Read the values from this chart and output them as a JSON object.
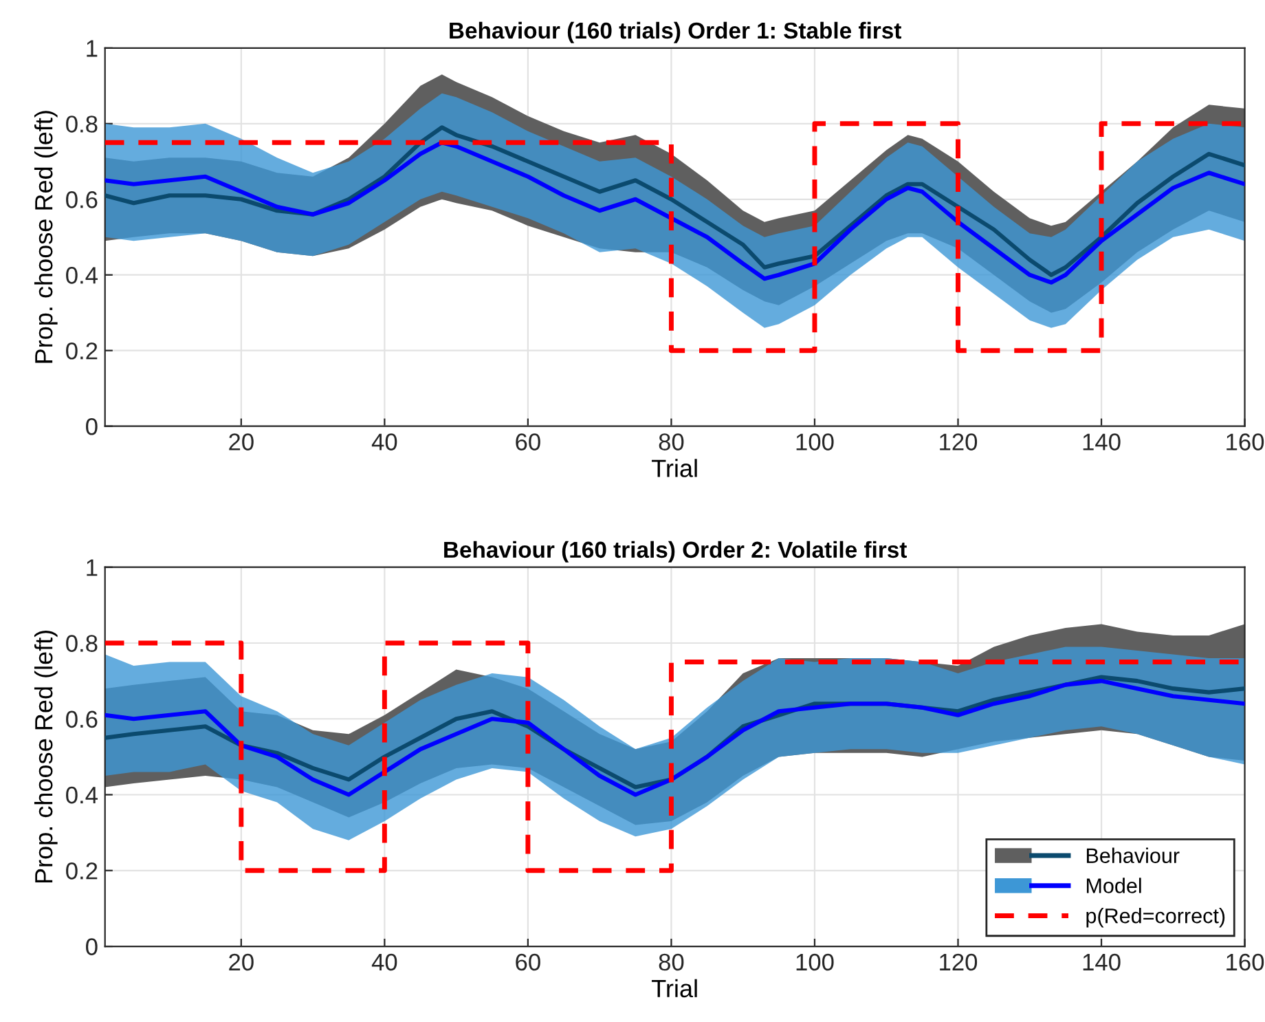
{
  "chart_data": [
    {
      "type": "line",
      "title": "Behaviour (160 trials) Order 1: Stable first",
      "xlabel": "Trial",
      "ylabel": "Prop. choose Red (left)",
      "xlim": [
        1,
        160
      ],
      "xticks": [
        20,
        40,
        60,
        80,
        100,
        120,
        140,
        160
      ],
      "ylim": [
        0,
        1
      ],
      "yticks": [
        0,
        0.2,
        0.4,
        0.6,
        0.8,
        1
      ],
      "grid": true,
      "legend": false,
      "series": [
        {
          "color": "#0b4a6e",
          "x": [
            1,
            5,
            10,
            15,
            20,
            25,
            30,
            35,
            40,
            45,
            48,
            50,
            55,
            60,
            65,
            70,
            75,
            80,
            85,
            90,
            93,
            95,
            100,
            105,
            110,
            113,
            115,
            120,
            125,
            130,
            133,
            135,
            140,
            145,
            150,
            155,
            160
          ],
          "values": [
            0.61,
            0.59,
            0.61,
            0.61,
            0.6,
            0.57,
            0.56,
            0.6,
            0.66,
            0.75,
            0.79,
            0.77,
            0.74,
            0.7,
            0.66,
            0.62,
            0.65,
            0.6,
            0.54,
            0.48,
            0.42,
            0.43,
            0.45,
            0.53,
            0.61,
            0.64,
            0.64,
            0.58,
            0.52,
            0.44,
            0.4,
            0.42,
            0.5,
            0.59,
            0.66,
            0.72,
            0.69
          ],
          "lower": [
            0.49,
            0.5,
            0.51,
            0.51,
            0.49,
            0.46,
            0.45,
            0.47,
            0.52,
            0.58,
            0.6,
            0.59,
            0.57,
            0.53,
            0.5,
            0.47,
            0.46,
            0.46,
            0.42,
            0.36,
            0.33,
            0.32,
            0.37,
            0.43,
            0.49,
            0.51,
            0.51,
            0.47,
            0.4,
            0.33,
            0.3,
            0.31,
            0.38,
            0.46,
            0.52,
            0.57,
            0.54
          ],
          "upper": [
            0.71,
            0.7,
            0.71,
            0.71,
            0.7,
            0.67,
            0.66,
            0.71,
            0.8,
            0.9,
            0.93,
            0.91,
            0.87,
            0.82,
            0.78,
            0.75,
            0.77,
            0.72,
            0.65,
            0.57,
            0.54,
            0.55,
            0.57,
            0.65,
            0.73,
            0.77,
            0.76,
            0.7,
            0.62,
            0.55,
            0.53,
            0.54,
            0.62,
            0.7,
            0.79,
            0.85,
            0.84
          ]
        },
        {
          "color": "#0000ff",
          "x": [
            1,
            5,
            10,
            15,
            20,
            25,
            30,
            35,
            40,
            45,
            48,
            50,
            55,
            60,
            65,
            70,
            75,
            80,
            85,
            90,
            93,
            95,
            100,
            105,
            110,
            113,
            115,
            120,
            125,
            130,
            133,
            135,
            140,
            145,
            150,
            155,
            160
          ],
          "values": [
            0.65,
            0.64,
            0.65,
            0.66,
            0.62,
            0.58,
            0.56,
            0.59,
            0.65,
            0.72,
            0.75,
            0.74,
            0.7,
            0.66,
            0.61,
            0.57,
            0.6,
            0.55,
            0.5,
            0.43,
            0.39,
            0.4,
            0.43,
            0.52,
            0.6,
            0.63,
            0.62,
            0.54,
            0.47,
            0.4,
            0.38,
            0.4,
            0.49,
            0.56,
            0.63,
            0.67,
            0.64
          ],
          "lower": [
            0.5,
            0.49,
            0.5,
            0.51,
            0.49,
            0.46,
            0.45,
            0.48,
            0.54,
            0.6,
            0.62,
            0.61,
            0.58,
            0.55,
            0.51,
            0.46,
            0.47,
            0.43,
            0.37,
            0.3,
            0.26,
            0.27,
            0.32,
            0.4,
            0.47,
            0.5,
            0.5,
            0.42,
            0.35,
            0.28,
            0.26,
            0.27,
            0.36,
            0.44,
            0.5,
            0.52,
            0.49
          ],
          "upper": [
            0.8,
            0.79,
            0.79,
            0.8,
            0.76,
            0.71,
            0.67,
            0.7,
            0.76,
            0.84,
            0.88,
            0.87,
            0.83,
            0.78,
            0.74,
            0.7,
            0.71,
            0.66,
            0.6,
            0.53,
            0.5,
            0.51,
            0.53,
            0.62,
            0.71,
            0.75,
            0.74,
            0.66,
            0.58,
            0.51,
            0.5,
            0.52,
            0.61,
            0.7,
            0.76,
            0.8,
            0.79
          ]
        },
        {
          "type": "step",
          "color": "#ff0000",
          "line_style": "dashed",
          "x": [
            1,
            80,
            100,
            120,
            140,
            160
          ],
          "values": [
            0.75,
            0.2,
            0.8,
            0.2,
            0.8,
            0.8
          ]
        }
      ]
    },
    {
      "type": "line",
      "title": "Behaviour (160 trials) Order 2: Volatile first",
      "xlabel": "Trial",
      "ylabel": "Prop. choose Red (left)",
      "xlim": [
        1,
        160
      ],
      "xticks": [
        20,
        40,
        60,
        80,
        100,
        120,
        140,
        160
      ],
      "ylim": [
        0,
        1
      ],
      "yticks": [
        0,
        0.2,
        0.4,
        0.6,
        0.8,
        1
      ],
      "grid": true,
      "legend": "bottom right",
      "series": [
        {
          "name": "Behaviour",
          "color": "#0b4a6e",
          "x": [
            1,
            5,
            10,
            15,
            20,
            25,
            30,
            35,
            40,
            45,
            50,
            55,
            60,
            65,
            70,
            75,
            80,
            85,
            90,
            95,
            100,
            105,
            110,
            115,
            120,
            125,
            130,
            135,
            140,
            145,
            150,
            155,
            160
          ],
          "values": [
            0.55,
            0.56,
            0.57,
            0.58,
            0.53,
            0.51,
            0.47,
            0.44,
            0.5,
            0.55,
            0.6,
            0.62,
            0.58,
            0.52,
            0.47,
            0.42,
            0.44,
            0.5,
            0.58,
            0.61,
            0.64,
            0.64,
            0.64,
            0.63,
            0.62,
            0.65,
            0.67,
            0.69,
            0.71,
            0.7,
            0.68,
            0.67,
            0.68
          ],
          "lower": [
            0.42,
            0.43,
            0.44,
            0.45,
            0.44,
            0.42,
            0.38,
            0.34,
            0.38,
            0.43,
            0.47,
            0.48,
            0.47,
            0.42,
            0.37,
            0.32,
            0.33,
            0.38,
            0.45,
            0.5,
            0.51,
            0.51,
            0.51,
            0.5,
            0.52,
            0.54,
            0.55,
            0.56,
            0.57,
            0.56,
            0.53,
            0.5,
            0.49
          ],
          "upper": [
            0.68,
            0.69,
            0.7,
            0.71,
            0.62,
            0.61,
            0.57,
            0.56,
            0.61,
            0.67,
            0.73,
            0.71,
            0.68,
            0.62,
            0.56,
            0.52,
            0.54,
            0.62,
            0.72,
            0.76,
            0.76,
            0.76,
            0.76,
            0.75,
            0.74,
            0.79,
            0.82,
            0.84,
            0.85,
            0.83,
            0.82,
            0.82,
            0.85
          ]
        },
        {
          "name": "Model",
          "color": "#0000ff",
          "x": [
            1,
            5,
            10,
            15,
            20,
            25,
            30,
            35,
            40,
            45,
            50,
            55,
            60,
            65,
            70,
            75,
            80,
            85,
            90,
            95,
            100,
            105,
            110,
            115,
            120,
            125,
            130,
            135,
            140,
            145,
            150,
            155,
            160
          ],
          "values": [
            0.61,
            0.6,
            0.61,
            0.62,
            0.53,
            0.5,
            0.44,
            0.4,
            0.46,
            0.52,
            0.56,
            0.6,
            0.59,
            0.52,
            0.45,
            0.4,
            0.44,
            0.5,
            0.57,
            0.62,
            0.63,
            0.64,
            0.64,
            0.63,
            0.61,
            0.64,
            0.66,
            0.69,
            0.7,
            0.68,
            0.66,
            0.65,
            0.64
          ],
          "lower": [
            0.45,
            0.46,
            0.46,
            0.48,
            0.41,
            0.38,
            0.31,
            0.28,
            0.33,
            0.39,
            0.44,
            0.47,
            0.46,
            0.39,
            0.33,
            0.29,
            0.31,
            0.37,
            0.44,
            0.5,
            0.51,
            0.52,
            0.52,
            0.51,
            0.51,
            0.53,
            0.55,
            0.57,
            0.58,
            0.56,
            0.53,
            0.5,
            0.48
          ],
          "upper": [
            0.77,
            0.74,
            0.75,
            0.75,
            0.66,
            0.62,
            0.56,
            0.53,
            0.59,
            0.65,
            0.69,
            0.72,
            0.71,
            0.65,
            0.58,
            0.52,
            0.55,
            0.63,
            0.7,
            0.76,
            0.75,
            0.76,
            0.76,
            0.75,
            0.72,
            0.75,
            0.77,
            0.79,
            0.79,
            0.78,
            0.77,
            0.76,
            0.76
          ]
        },
        {
          "name": "p(Red=correct)",
          "type": "step",
          "color": "#ff0000",
          "line_style": "dashed",
          "x": [
            1,
            20,
            40,
            60,
            80,
            160
          ],
          "values": [
            0.8,
            0.2,
            0.8,
            0.2,
            0.75,
            0.75
          ]
        }
      ]
    }
  ]
}
